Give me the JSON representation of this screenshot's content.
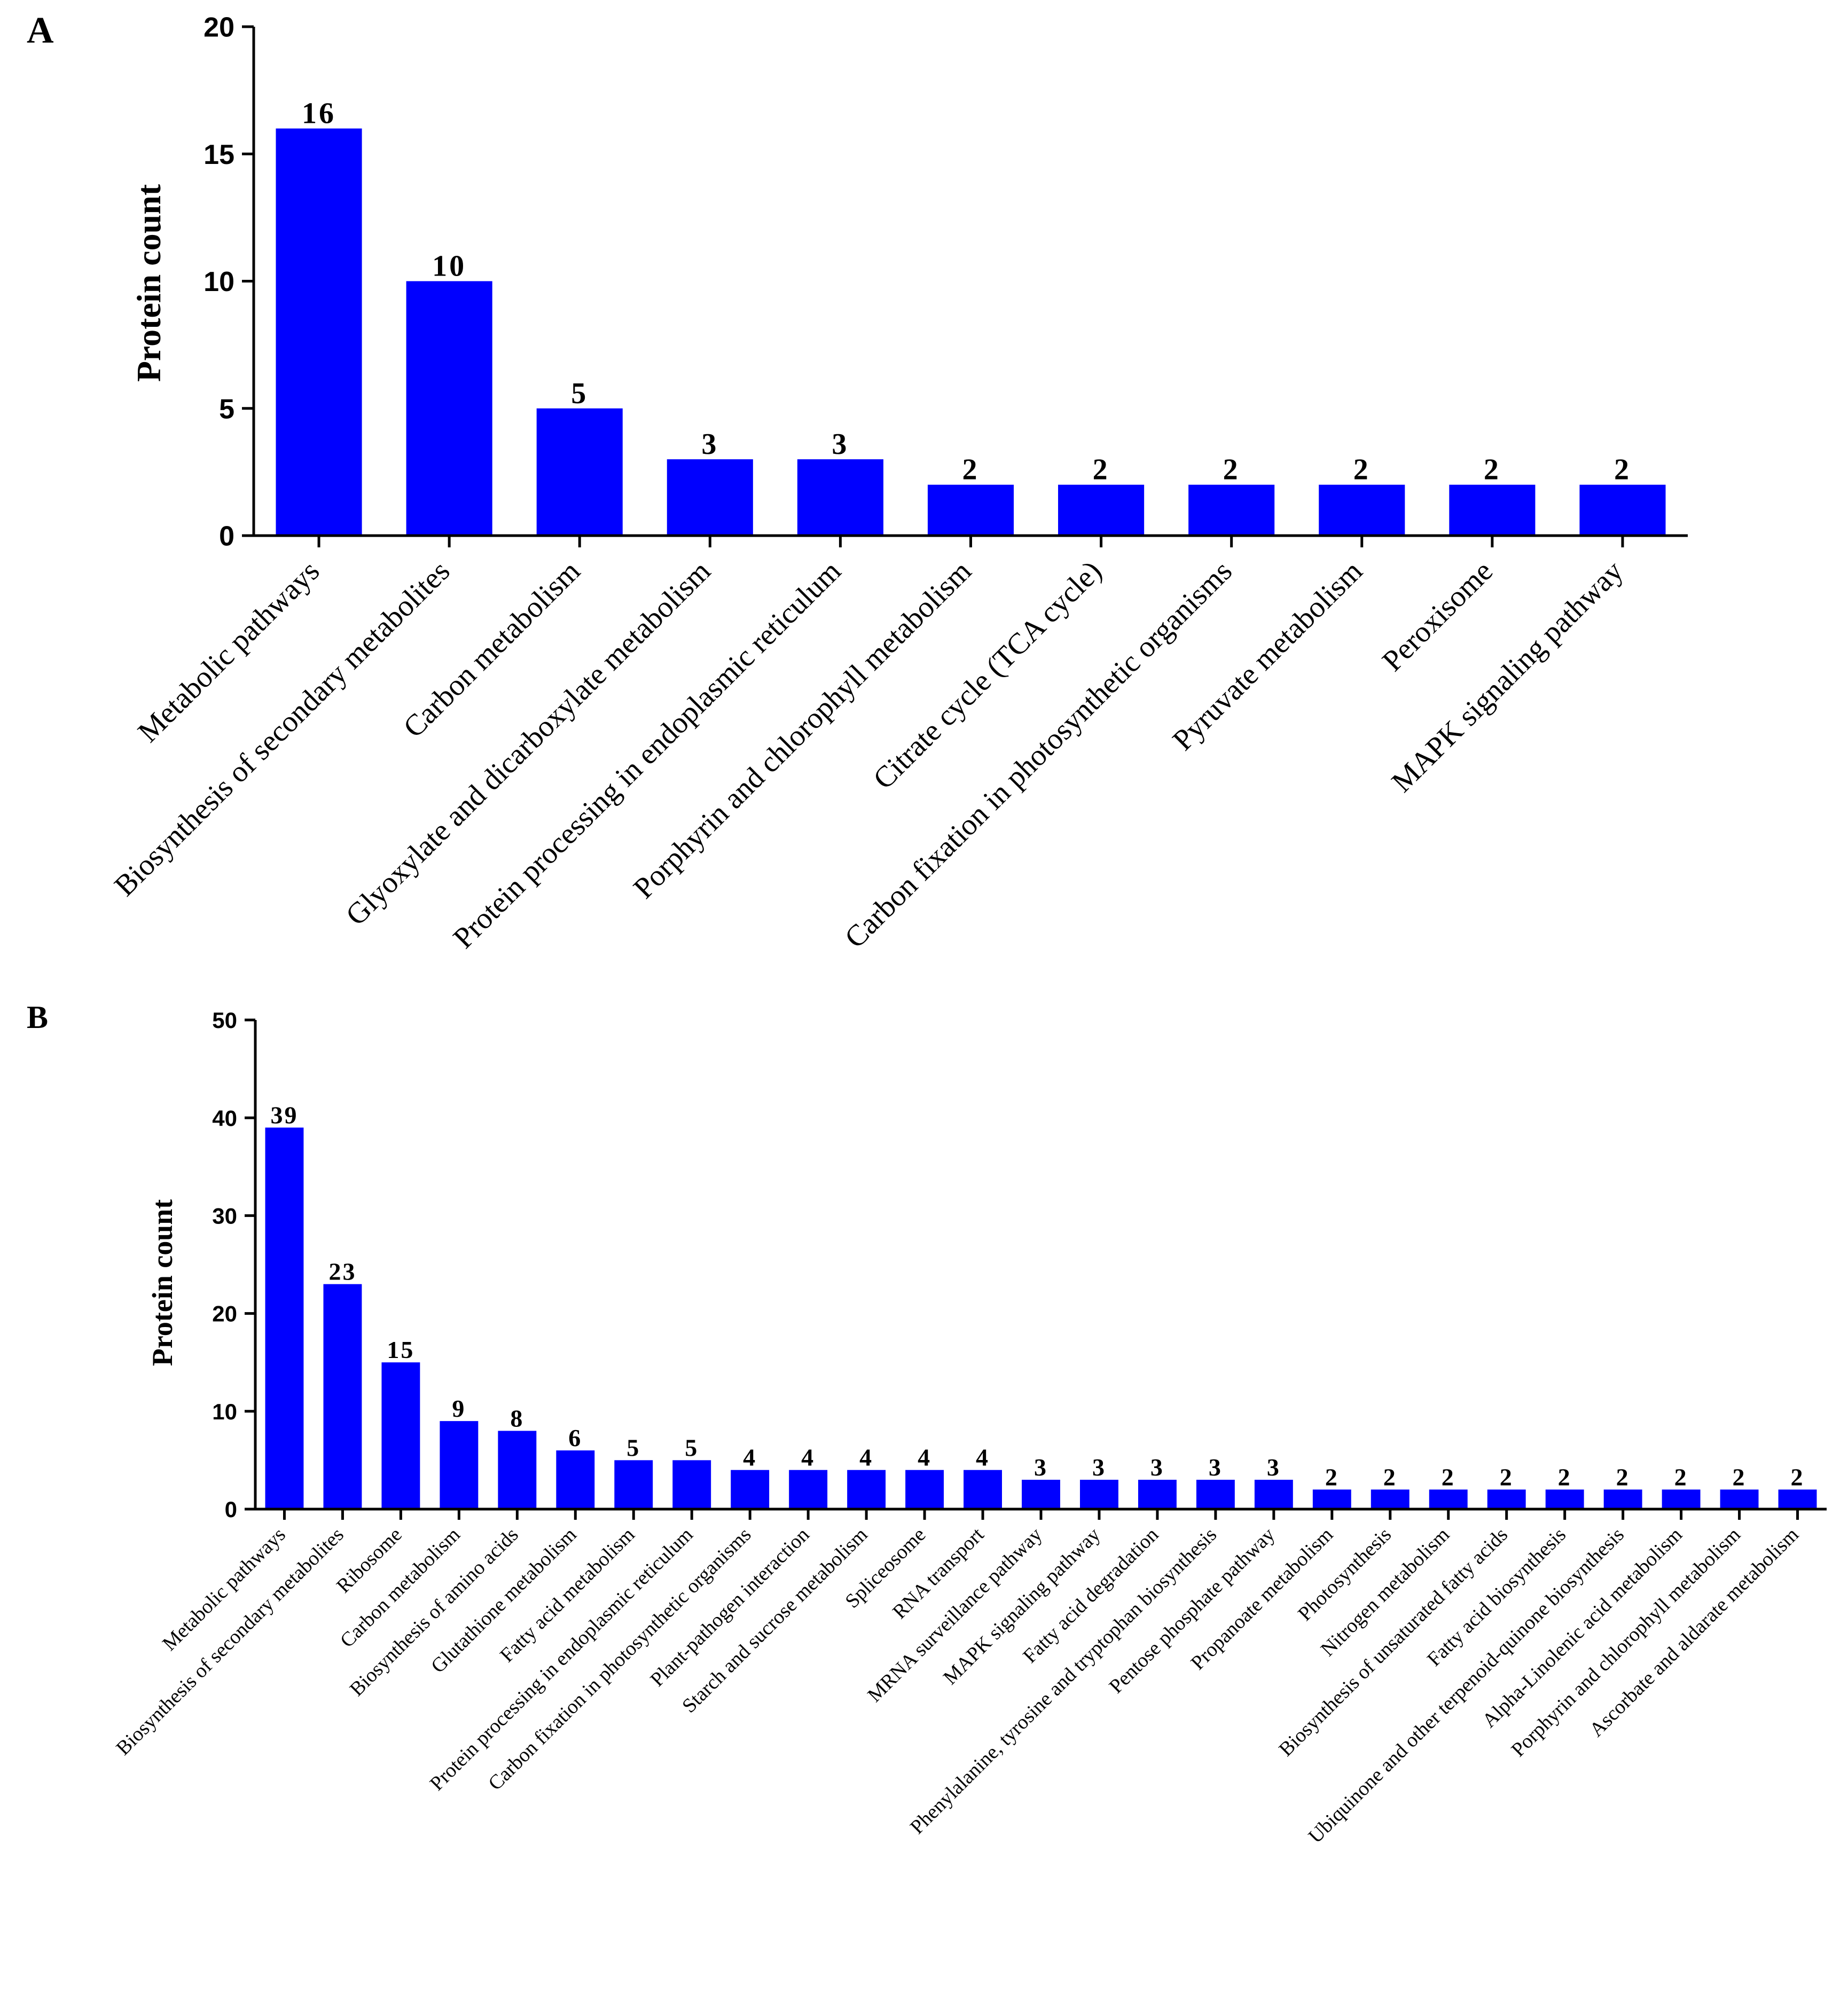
{
  "chart_data": [
    {
      "panel": "A",
      "type": "bar",
      "ylabel": "Protein count",
      "xlabel": "",
      "ylim": [
        0,
        20
      ],
      "yticks": [
        0,
        5,
        10,
        15,
        20
      ],
      "bar_color": "#0000ff",
      "categories": [
        "Metabolic pathways",
        "Biosynthesis of secondary metabolites",
        "Carbon metabolism",
        "Glyoxylate and dicarboxylate metabolism",
        "Protein processing in endoplasmic reticulum",
        "Porphyrin and chlorophyll metabolism",
        "Citrate cycle (TCA cycle)",
        "Carbon fixation in photosynthetic organisms",
        "Pyruvate metabolism",
        "Peroxisome",
        "MAPK signaling pathway"
      ],
      "values": [
        16,
        10,
        5,
        3,
        3,
        2,
        2,
        2,
        2,
        2,
        2
      ]
    },
    {
      "panel": "B",
      "type": "bar",
      "ylabel": "Protein count",
      "xlabel": "",
      "ylim": [
        0,
        50
      ],
      "yticks": [
        0,
        10,
        20,
        30,
        40,
        50
      ],
      "bar_color": "#0000ff",
      "categories": [
        "Metabolic pathways",
        "Biosynthesis of secondary metabolites",
        "Ribosome",
        "Carbon metabolism",
        "Biosynthesis of amino acids",
        "Glutathione metabolism",
        "Fatty acid metabolism",
        "Protein processing in endoplasmic reticulum",
        "Carbon fixation in photosynthetic organisms",
        "Plant-pathogen interaction",
        "Starch and sucrose metabolism",
        "Spliceosome",
        "RNA transport",
        "MRNA surveillance pathway",
        "MAPK signaling pathway",
        "Fatty acid degradation",
        "Phenylalanine, tyrosine and tryptophan biosynthesis",
        "Pentose phosphate pathway",
        "Propanoate metabolism",
        "Photosynthesis",
        "Nitrogen metabolism",
        "Biosynthesis of unsaturated fatty acids",
        "Fatty acid biosynthesis",
        "Ubiquinone and other terpenoid-quinone biosynthesis",
        "Alpha-Linolenic acid metabolism",
        "Porphyrin and chlorophyll metabolism",
        "Ascorbate and aldarate metabolism"
      ],
      "values": [
        39,
        23,
        15,
        9,
        8,
        6,
        5,
        5,
        4,
        4,
        4,
        4,
        4,
        3,
        3,
        3,
        3,
        3,
        2,
        2,
        2,
        2,
        2,
        2,
        2,
        2,
        2
      ]
    }
  ]
}
